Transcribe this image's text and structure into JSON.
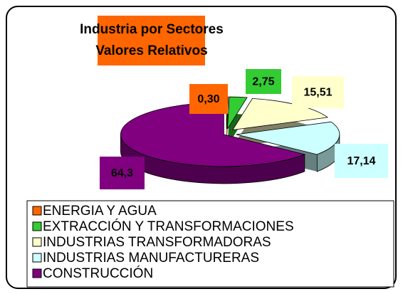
{
  "chart_data": {
    "type": "pie",
    "title": [
      "Industria por Sectores",
      "Valores Relativos"
    ],
    "categories": [
      "ENERGIA Y AGUA",
      "EXTRACCIÓN Y TRANSFORMACIONES",
      "INDUSTRIAS TRANSFORMADORAS",
      "INDUSTRIAS MANUFACTURERAS",
      "CONSTRUCCIÓN"
    ],
    "values": [
      0.3,
      2.75,
      15.51,
      17.14,
      64.3
    ],
    "value_labels": [
      "0,30",
      "2,75",
      "15,51",
      "17,14",
      "64,3"
    ],
    "colors": [
      "#ff6600",
      "#33cc33",
      "#ffffcc",
      "#ccffff",
      "#800080"
    ],
    "legend": "bottom"
  }
}
